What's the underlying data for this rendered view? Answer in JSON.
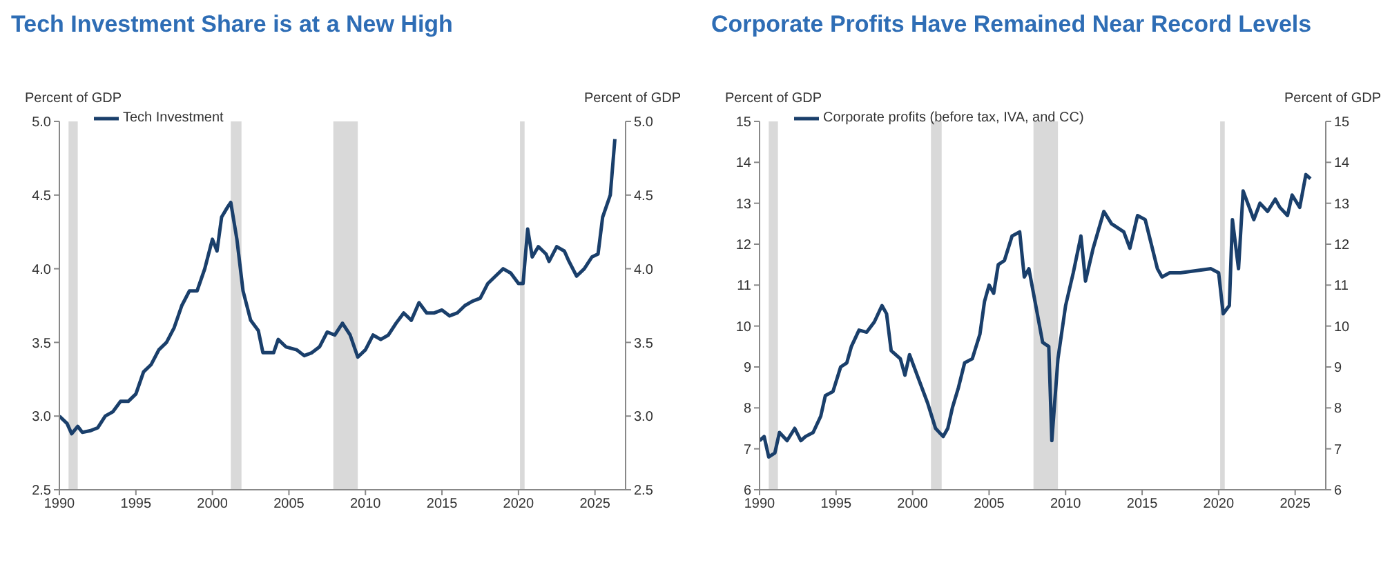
{
  "chart_data": [
    {
      "type": "line",
      "title": "Tech Investment Share is at a New High",
      "ylabel": "Percent of GDP",
      "y2label": "Percent of GDP",
      "legend": "top left",
      "grid": false,
      "xlim": [
        1990,
        2027
      ],
      "xticks": [
        1990,
        1995,
        2000,
        2005,
        2010,
        2015,
        2020,
        2025
      ],
      "ylim": [
        2.5,
        5
      ],
      "yticks": [
        2.5,
        {
          "value": 3,
          "label": "3.0"
        },
        3.5,
        {
          "value": 4,
          "label": "4.0"
        },
        4.5,
        {
          "value": 5,
          "label": "5.0"
        }
      ],
      "y2lim": [
        2.5,
        5
      ],
      "y2ticks": [
        2.5,
        {
          "value": 3,
          "label": "3.0"
        },
        3.5,
        {
          "value": 4,
          "label": "4.0"
        },
        4.5,
        {
          "value": 5,
          "label": "5.0"
        }
      ],
      "bands": [
        {
          "axis": "x",
          "from": 1990.6,
          "to": 1991.2,
          "color": "#d9d9d9"
        },
        {
          "axis": "x",
          "from": 2001.2,
          "to": 2001.9,
          "color": "#d9d9d9"
        },
        {
          "axis": "x",
          "from": 2007.9,
          "to": 2009.5,
          "color": "#d9d9d9"
        },
        {
          "axis": "x",
          "from": 2020.1,
          "to": 2020.4,
          "color": "#d9d9d9"
        }
      ],
      "series": [
        {
          "name": "Tech Investment",
          "color": "#1a3f6b",
          "x": [
            1990,
            1990.5,
            1990.8,
            1991.2,
            1991.5,
            1992,
            1992.5,
            1993,
            1993.5,
            1994,
            1994.5,
            1995,
            1995.5,
            1996,
            1996.5,
            1997,
            1997.5,
            1998,
            1998.5,
            1999,
            1999.5,
            2000,
            2000.3,
            2000.6,
            2001,
            2001.2,
            2001.6,
            2002,
            2002.5,
            2003,
            2003.3,
            2004,
            2004.3,
            2004.8,
            2005.5,
            2006,
            2006.5,
            2007,
            2007.5,
            2008,
            2008.5,
            2009,
            2009.5,
            2010,
            2010.5,
            2011,
            2011.5,
            2012,
            2012.5,
            2013,
            2013.5,
            2014,
            2014.5,
            2015,
            2015.5,
            2016,
            2016.5,
            2017,
            2017.5,
            2018,
            2018.5,
            2019,
            2019.5,
            2020,
            2020.3,
            2020.6,
            2020.9,
            2021.3,
            2021.8,
            2022,
            2022.5,
            2023,
            2023.3,
            2023.8,
            2024.3,
            2024.8,
            2025.2,
            2025.5,
            2026,
            2026.3
          ],
          "values": [
            3.0,
            2.95,
            2.88,
            2.93,
            2.89,
            2.9,
            2.92,
            3.0,
            3.03,
            3.1,
            3.1,
            3.15,
            3.3,
            3.35,
            3.45,
            3.5,
            3.6,
            3.75,
            3.85,
            3.85,
            4.0,
            4.2,
            4.12,
            4.35,
            4.42,
            4.45,
            4.2,
            3.85,
            3.65,
            3.58,
            3.43,
            3.43,
            3.52,
            3.47,
            3.45,
            3.41,
            3.43,
            3.47,
            3.57,
            3.55,
            3.63,
            3.55,
            3.4,
            3.45,
            3.55,
            3.52,
            3.55,
            3.63,
            3.7,
            3.65,
            3.77,
            3.7,
            3.7,
            3.72,
            3.68,
            3.7,
            3.75,
            3.78,
            3.8,
            3.9,
            3.95,
            4.0,
            3.97,
            3.9,
            3.9,
            4.27,
            4.08,
            4.15,
            4.1,
            4.05,
            4.15,
            4.12,
            4.05,
            3.95,
            4.0,
            4.08,
            4.1,
            4.35,
            4.5,
            4.88
          ]
        }
      ]
    },
    {
      "type": "line",
      "title": "Corporate Profits Have Remained Near Record Levels",
      "ylabel": "Percent of GDP",
      "y2label": "Percent of GDP",
      "legend": "top left",
      "grid": false,
      "xlim": [
        1990,
        2027
      ],
      "xticks": [
        1990,
        1995,
        2000,
        2005,
        2010,
        2015,
        2020,
        2025
      ],
      "ylim": [
        6,
        15
      ],
      "yticks": [
        6,
        7,
        8,
        9,
        10,
        11,
        12,
        13,
        14,
        15
      ],
      "y2lim": [
        6,
        15
      ],
      "y2ticks": [
        6,
        7,
        8,
        9,
        10,
        11,
        12,
        13,
        14,
        15
      ],
      "bands": [
        {
          "axis": "x",
          "from": 1990.6,
          "to": 1991.2,
          "color": "#d9d9d9"
        },
        {
          "axis": "x",
          "from": 2001.2,
          "to": 2001.9,
          "color": "#d9d9d9"
        },
        {
          "axis": "x",
          "from": 2007.9,
          "to": 2009.5,
          "color": "#d9d9d9"
        },
        {
          "axis": "x",
          "from": 2020.1,
          "to": 2020.4,
          "color": "#d9d9d9"
        }
      ],
      "series": [
        {
          "name": "Corporate profits (before tax, IVA, and CC)",
          "color": "#1a3f6b",
          "x": [
            1990,
            1990.3,
            1990.6,
            1991,
            1991.3,
            1991.8,
            1992.3,
            1992.7,
            1993,
            1993.5,
            1994,
            1994.3,
            1994.8,
            1995.3,
            1995.7,
            1996,
            1996.5,
            1997,
            1997.5,
            1998,
            1998.3,
            1998.6,
            1999.2,
            1999.5,
            1999.8,
            2000.3,
            2001,
            2001.5,
            2002,
            2002.3,
            2002.6,
            2003,
            2003.4,
            2003.9,
            2004.4,
            2004.7,
            2005,
            2005.3,
            2005.6,
            2006,
            2006.5,
            2007,
            2007.3,
            2007.6,
            2008,
            2008.5,
            2008.9,
            2009.1,
            2009.5,
            2010,
            2010.5,
            2011,
            2011.3,
            2011.8,
            2012.5,
            2013,
            2013.8,
            2014.2,
            2014.7,
            2015.2,
            2016,
            2016.3,
            2016.8,
            2017.5,
            2018.5,
            2019.5,
            2020,
            2020.3,
            2020.7,
            2020.9,
            2021.3,
            2021.6,
            2022.3,
            2022.7,
            2023.2,
            2023.7,
            2024,
            2024.5,
            2024.8,
            2025.3,
            2025.7,
            2026
          ],
          "values": [
            7.2,
            7.3,
            6.8,
            6.9,
            7.4,
            7.2,
            7.5,
            7.2,
            7.3,
            7.4,
            7.8,
            8.3,
            8.4,
            9.0,
            9.1,
            9.5,
            9.9,
            9.85,
            10.1,
            10.5,
            10.3,
            9.4,
            9.2,
            8.8,
            9.3,
            8.8,
            8.1,
            7.5,
            7.3,
            7.5,
            8.0,
            8.5,
            9.1,
            9.2,
            9.8,
            10.6,
            11.0,
            10.8,
            11.5,
            11.6,
            12.2,
            12.3,
            11.2,
            11.4,
            10.6,
            9.6,
            9.5,
            7.2,
            9.2,
            10.5,
            11.3,
            12.2,
            11.1,
            11.9,
            12.8,
            12.5,
            12.3,
            11.9,
            12.7,
            12.6,
            11.4,
            11.2,
            11.3,
            11.3,
            11.35,
            11.4,
            11.3,
            10.3,
            10.5,
            12.6,
            11.4,
            13.3,
            12.6,
            13.0,
            12.8,
            13.1,
            12.9,
            12.7,
            13.2,
            12.9,
            13.7,
            13.6
          ]
        }
      ]
    }
  ]
}
